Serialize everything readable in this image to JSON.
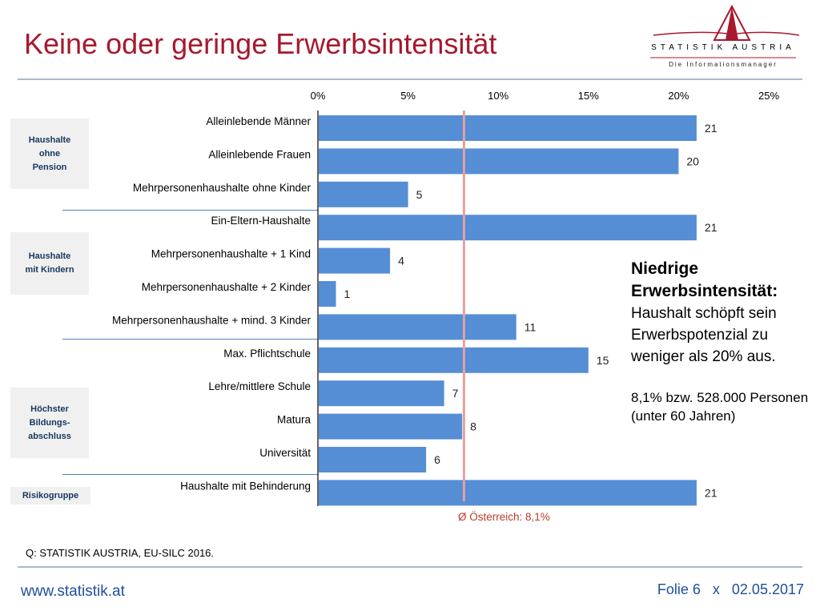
{
  "page": {
    "title": "Keine oder geringe Erwerbsintensität",
    "source": "Q: STATISTIK AUSTRIA, EU-SILC 2016.",
    "url": "www.statistik.at",
    "slide": "Folie 6",
    "separator": "x",
    "date": "02.05.2017"
  },
  "logo": {
    "name": "STATISTIK AUSTRIA",
    "tagline": "Die Informationsmanager",
    "color": "#a6192e"
  },
  "note": {
    "heading_line1": "Niedrige",
    "heading_line2": "Erwerbsintensität:",
    "definition": "Haushalt schöpft sein Erwerbspotenzial zu weniger als 20% aus.",
    "stat_line1": "8,1% bzw. 528.000 Personen",
    "stat_line2": "(unter 60 Jahren)"
  },
  "groups": [
    {
      "label": "Haushalte\nohne\nPension"
    },
    {
      "label": "Haushalte\nmit Kindern"
    },
    {
      "label": "Höchster\nBildungs-\nabschluss"
    },
    {
      "label": "Risikogruppe"
    }
  ],
  "chart_data": {
    "type": "bar",
    "orientation": "horizontal",
    "x_axis_position": "top",
    "xlim": [
      0,
      25
    ],
    "ticks": [
      "0%",
      "5%",
      "10%",
      "15%",
      "20%",
      "25%"
    ],
    "categories": [
      "Alleinlebende Männer",
      "Alleinlebende Frauen",
      "Mehrpersonenhaushalte ohne Kinder",
      "Ein-Eltern-Haushalte",
      "Mehrpersonenhaushalte + 1 Kind",
      "Mehrpersonenhaushalte + 2 Kinder",
      "Mehrpersonenhaushalte + mind. 3 Kinder",
      "Max. Pflichtschule",
      "Lehre/mittlere Schule",
      "Matura",
      "Universität",
      "Haushalte mit Behinderung"
    ],
    "values": [
      21,
      20,
      5,
      21,
      4,
      1,
      11,
      15,
      7,
      8,
      6,
      21
    ],
    "data_labels": [
      "21",
      "20",
      "5",
      "21",
      "4",
      "1",
      "11",
      "15",
      "7",
      "8",
      "6",
      "21"
    ],
    "reference": {
      "value": 8.1,
      "label": "Ø Österreich: 8,1%"
    },
    "bar_color": "#558ed5",
    "reference_color": "#e6a0a0",
    "reference_label_color": "#c0392b"
  }
}
